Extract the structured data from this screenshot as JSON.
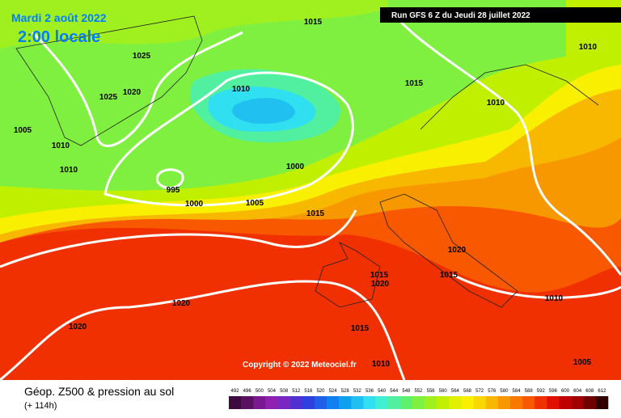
{
  "header": {
    "date": "Mardi 2 août 2022",
    "time": "2:00 locale",
    "run": "Run GFS 6 Z du Jeudi 28 juillet 2022"
  },
  "isobar_labels": [
    "1015",
    "1025",
    "1010",
    "1015",
    "1010",
    "1025",
    "1020",
    "1010",
    "1005",
    "1010",
    "1010",
    "1000",
    "995",
    "1000",
    "1005",
    "1015",
    "1020",
    "1015",
    "1020",
    "1015",
    "1010",
    "1020",
    "1020",
    "1015",
    "1005",
    "1010"
  ],
  "copyright": "Copyright © 2022 Meteociel.fr",
  "footer": {
    "title": "Géop. Z500 & pression au sol",
    "lead": "(+ 114h)"
  },
  "scale": {
    "labels": [
      492,
      496,
      500,
      504,
      508,
      512,
      516,
      520,
      524,
      528,
      532,
      536,
      540,
      544,
      548,
      552,
      556,
      560,
      564,
      568,
      572,
      576,
      580,
      584,
      588,
      592,
      596,
      600,
      604,
      608,
      612
    ],
    "colors": [
      "#3c0a3c",
      "#5a1060",
      "#7a1890",
      "#9020b0",
      "#7828c0",
      "#5030d0",
      "#3040e0",
      "#2060e8",
      "#1080f0",
      "#10a0f0",
      "#20c0f0",
      "#30e0f0",
      "#40f0d0",
      "#50f0a0",
      "#60f070",
      "#80f040",
      "#a0f020",
      "#c0f000",
      "#e0f000",
      "#f8f000",
      "#f8d800",
      "#f8b800",
      "#f89800",
      "#f87800",
      "#f85800",
      "#f03000",
      "#e01000",
      "#c00000",
      "#a00000",
      "#700000",
      "#300000"
    ]
  }
}
